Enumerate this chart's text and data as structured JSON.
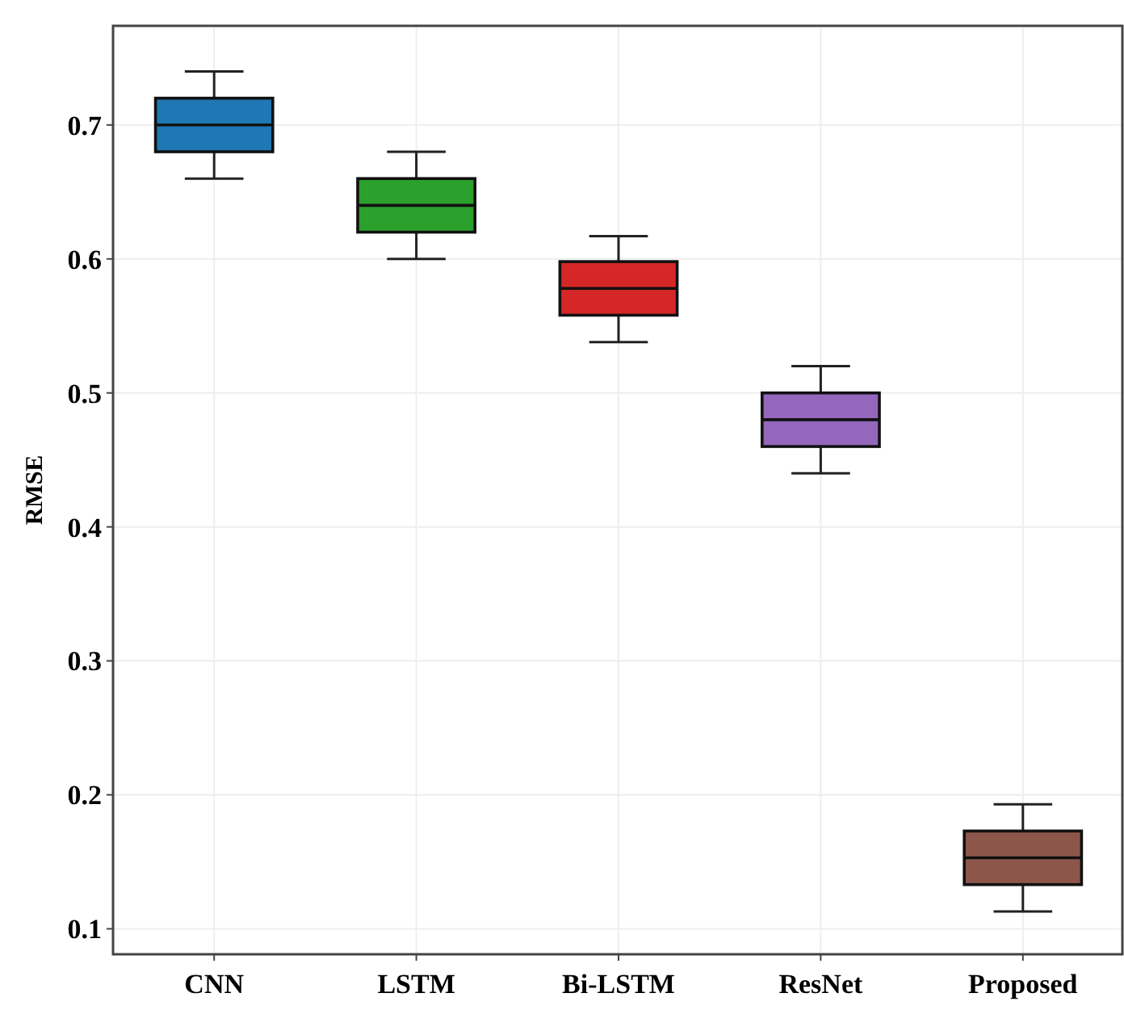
{
  "chart_data": {
    "type": "box",
    "ylabel": "RMSE",
    "categories": [
      "CNN",
      "LSTM",
      "Bi-LSTM",
      "ResNet",
      "Proposed"
    ],
    "colors": [
      "#1f77b4",
      "#2ca02c",
      "#d62728",
      "#9467bd",
      "#8c564b"
    ],
    "boxes": [
      {
        "low": 0.66,
        "q1": 0.68,
        "median": 0.7,
        "q3": 0.72,
        "high": 0.74
      },
      {
        "low": 0.6,
        "q1": 0.62,
        "median": 0.64,
        "q3": 0.66,
        "high": 0.68
      },
      {
        "low": 0.538,
        "q1": 0.558,
        "median": 0.578,
        "q3": 0.598,
        "high": 0.617
      },
      {
        "low": 0.44,
        "q1": 0.46,
        "median": 0.48,
        "q3": 0.5,
        "high": 0.52
      },
      {
        "low": 0.113,
        "q1": 0.133,
        "median": 0.153,
        "q3": 0.173,
        "high": 0.193
      }
    ],
    "ylim": [
      0.081,
      0.774
    ],
    "yticks": [
      0.1,
      0.2,
      0.3,
      0.4,
      0.5,
      0.6,
      0.7
    ],
    "grid": true
  }
}
